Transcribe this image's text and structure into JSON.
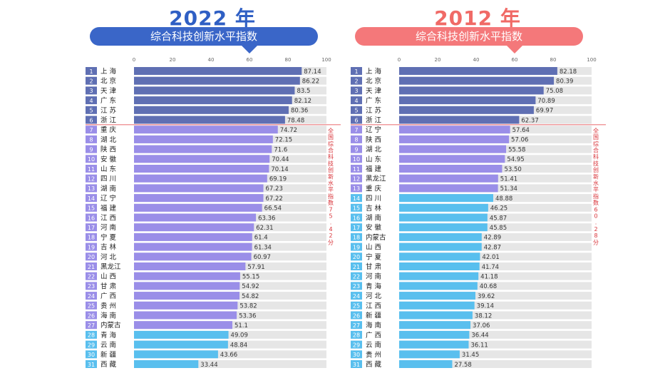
{
  "chart_data": [
    {
      "type": "bar",
      "year_title": "2022 年",
      "title": "综合科技创新水平指数",
      "xlim": [
        0,
        100
      ],
      "ticks": [
        0,
        20,
        40,
        60,
        80,
        100
      ],
      "note": "全国综合科技创新水平指数75.42分",
      "accent_color": "#2f5fc4",
      "banner_color": "#3a66c8",
      "categories": [
        "上 海",
        "北 京",
        "天 津",
        "广 东",
        "江 苏",
        "浙 江",
        "重 庆",
        "湖 北",
        "陕 西",
        "安 徽",
        "山 东",
        "四 川",
        "湖 南",
        "辽 宁",
        "福 建",
        "江 西",
        "河 南",
        "宁 夏",
        "吉 林",
        "河 北",
        "黑龙江",
        "山 西",
        "甘 肃",
        "广 西",
        "贵 州",
        "海 南",
        "内蒙古",
        "青 海",
        "云 南",
        "新 疆",
        "西 藏"
      ],
      "values": [
        87.14,
        86.22,
        83.5,
        82.12,
        80.36,
        78.48,
        74.72,
        72.15,
        71.6,
        70.44,
        70.14,
        69.19,
        67.23,
        67.22,
        66.54,
        63.36,
        62.31,
        61.4,
        61.34,
        60.97,
        57.91,
        55.15,
        54.92,
        54.82,
        53.82,
        53.36,
        51.1,
        49.09,
        48.84,
        43.66,
        33.44
      ],
      "labels": [
        "87.14",
        "86.22",
        "83.5",
        "82.12",
        "80.36",
        "78.48",
        "74.72",
        "72.15",
        "71.6",
        "70.44",
        "70.14",
        "69.19",
        "67.23",
        "67.22",
        "66.54",
        "63.36",
        "62.31",
        "61.4",
        "61.34",
        "60.97",
        "57.91",
        "55.15",
        "54.92",
        "54.82",
        "53.82",
        "53.36",
        "51.1",
        "49.09",
        "48.84",
        "43.66",
        "33.44"
      ],
      "tiers": [
        {
          "count": 6,
          "color": "#5f6fb3"
        },
        {
          "count": 21,
          "color": "#9a8ee8"
        },
        {
          "count": 4,
          "color": "#59bfee"
        }
      ],
      "divider_after": 6,
      "note_rows": [
        7,
        15
      ]
    },
    {
      "type": "bar",
      "year_title": "2012 年",
      "title": "综合科技创新水平指数",
      "xlim": [
        0,
        100
      ],
      "ticks": [
        0,
        20,
        40,
        60,
        80,
        100
      ],
      "note": "全国综合科技创新水平指数60.28分",
      "accent_color": "#f06a66",
      "banner_color": "#f4787a",
      "categories": [
        "上 海",
        "北 京",
        "天 津",
        "广 东",
        "江 苏",
        "浙 江",
        "辽 宁",
        "陕 西",
        "湖 北",
        "山 东",
        "福 建",
        "黑龙江",
        "重 庆",
        "四 川",
        "吉 林",
        "湖 南",
        "安 徽",
        "内蒙古",
        "山 西",
        "宁 夏",
        "甘 肃",
        "河 南",
        "青 海",
        "河 北",
        "江 西",
        "新 疆",
        "海 南",
        "广 西",
        "云 南",
        "贵 州",
        "西 藏"
      ],
      "values": [
        82.18,
        80.39,
        75.08,
        70.89,
        69.97,
        62.37,
        57.64,
        57.06,
        55.58,
        54.95,
        53.5,
        51.41,
        51.34,
        48.88,
        46.25,
        45.87,
        45.85,
        42.89,
        42.87,
        42.01,
        41.74,
        41.18,
        40.68,
        39.62,
        39.14,
        38.12,
        37.06,
        36.44,
        36.11,
        31.45,
        27.58
      ],
      "labels": [
        "82.18",
        "80.39",
        "75.08",
        "70.89",
        "69.97",
        "62.37",
        "57.64",
        "57.06",
        "55.58",
        "54.95",
        "53.50",
        "51.41",
        "51.34",
        "48.88",
        "46.25",
        "45.87",
        "45.85",
        "42.89",
        "42.87",
        "42.01",
        "41.74",
        "41.18",
        "40.68",
        "39.62",
        "39.14",
        "38.12",
        "37.06",
        "36.44",
        "36.11",
        "31.45",
        "27.58"
      ],
      "tiers": [
        {
          "count": 6,
          "color": "#5f6fb3"
        },
        {
          "count": 7,
          "color": "#9a8ee8"
        },
        {
          "count": 18,
          "color": "#59bfee"
        }
      ],
      "divider_after": 6,
      "note_rows": [
        7,
        15
      ]
    }
  ]
}
